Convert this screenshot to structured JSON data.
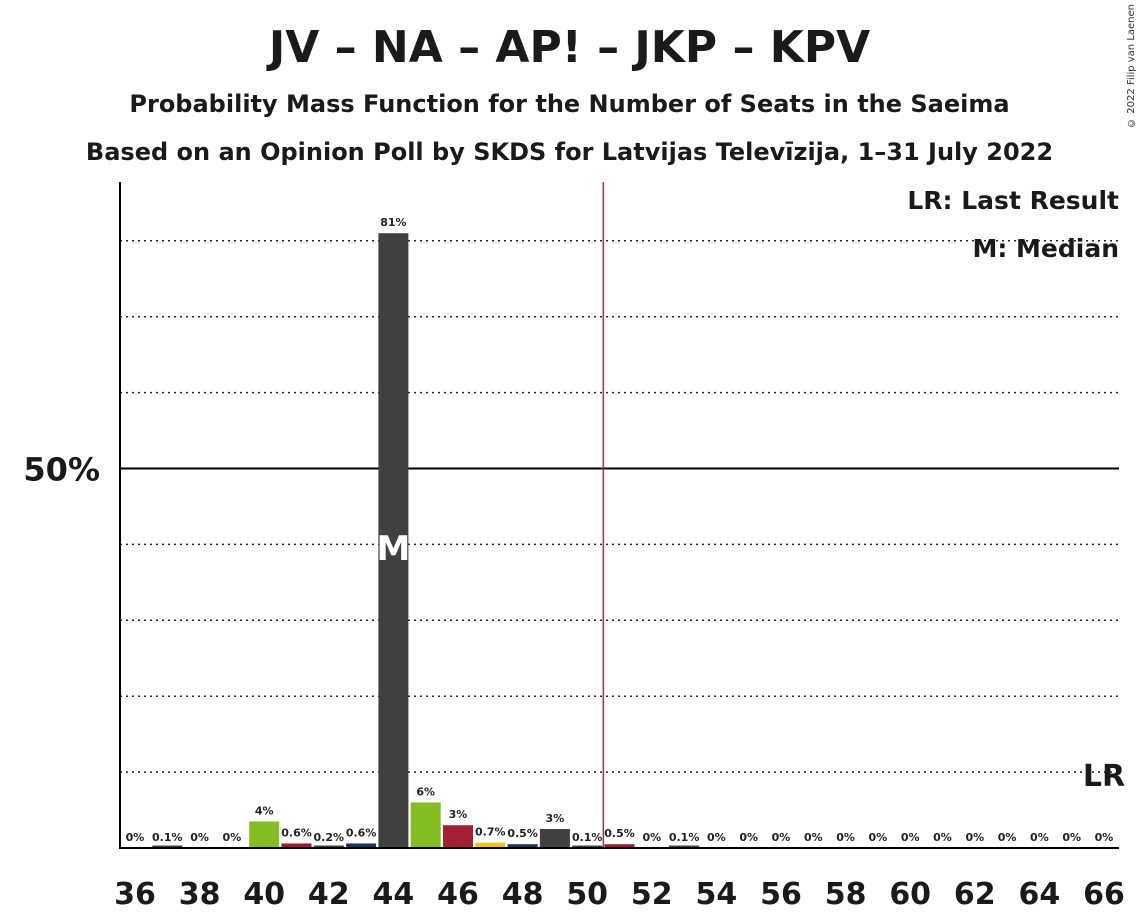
{
  "title": "JV – NA – AP! – JKP – KPV",
  "subtitle1": "Probability Mass Function for the Number of Seats in the Saeima",
  "subtitle2": "Based on an Opinion Poll by SKDS for Latvijas Televīzija, 1–31 July 2022",
  "copyright": "© 2022 Filip van Laenen",
  "legend": {
    "last_result": "LR: Last Result",
    "median": "M: Median"
  },
  "markers": {
    "median_label": "M",
    "last_result_label": "LR",
    "median_seat": 44,
    "last_result_seat": 66,
    "majority_line_seat": 50.5
  },
  "chart_data": {
    "type": "bar",
    "x": [
      36,
      37,
      38,
      39,
      40,
      41,
      42,
      43,
      44,
      45,
      46,
      47,
      48,
      49,
      50,
      51,
      52,
      53,
      54,
      55,
      56,
      57,
      58,
      59,
      60,
      61,
      62,
      63,
      64,
      65,
      66
    ],
    "values": [
      0,
      0.1,
      0,
      0,
      3.5,
      0.6,
      0.2,
      0.6,
      81,
      6,
      3,
      0.7,
      0.5,
      2.5,
      0.1,
      0.5,
      0,
      0.1,
      0,
      0,
      0,
      0,
      0,
      0,
      0,
      0,
      0,
      0,
      0,
      0,
      0
    ],
    "labels": [
      "0%",
      "0.1%",
      "0%",
      "0%",
      "4%",
      "0.6%",
      "0.2%",
      "0.6%",
      "81%",
      "6%",
      "3%",
      "0.7%",
      "0.5%",
      "3%",
      "0.1%",
      "0.5%",
      "0%",
      "0.1%",
      "0%",
      "0%",
      "0%",
      "0%",
      "0%",
      "0%",
      "0%",
      "0%",
      "0%",
      "0%",
      "0%",
      "0%",
      "0%"
    ],
    "colors": [
      "#404040",
      "#404040",
      "#404040",
      "#404040",
      "#86bc24",
      "#9b1b30",
      "#404040",
      "#1d3557",
      "#404040",
      "#86bc24",
      "#a31f34",
      "#f1c40f",
      "#1d3557",
      "#404040",
      "#404040",
      "#9b1b30",
      "#404040",
      "#404040",
      "#404040",
      "#404040",
      "#404040",
      "#404040",
      "#404040",
      "#404040",
      "#404040",
      "#404040",
      "#404040",
      "#404040",
      "#404040",
      "#404040",
      "#404040"
    ],
    "x_tick_labels": [
      "36",
      "38",
      "40",
      "42",
      "44",
      "46",
      "48",
      "50",
      "52",
      "54",
      "56",
      "58",
      "60",
      "62",
      "64",
      "66"
    ],
    "y_tick_label": "50%",
    "ylim": [
      0,
      88
    ],
    "grid": "dotted every 10%",
    "legend_position": "top-right"
  }
}
